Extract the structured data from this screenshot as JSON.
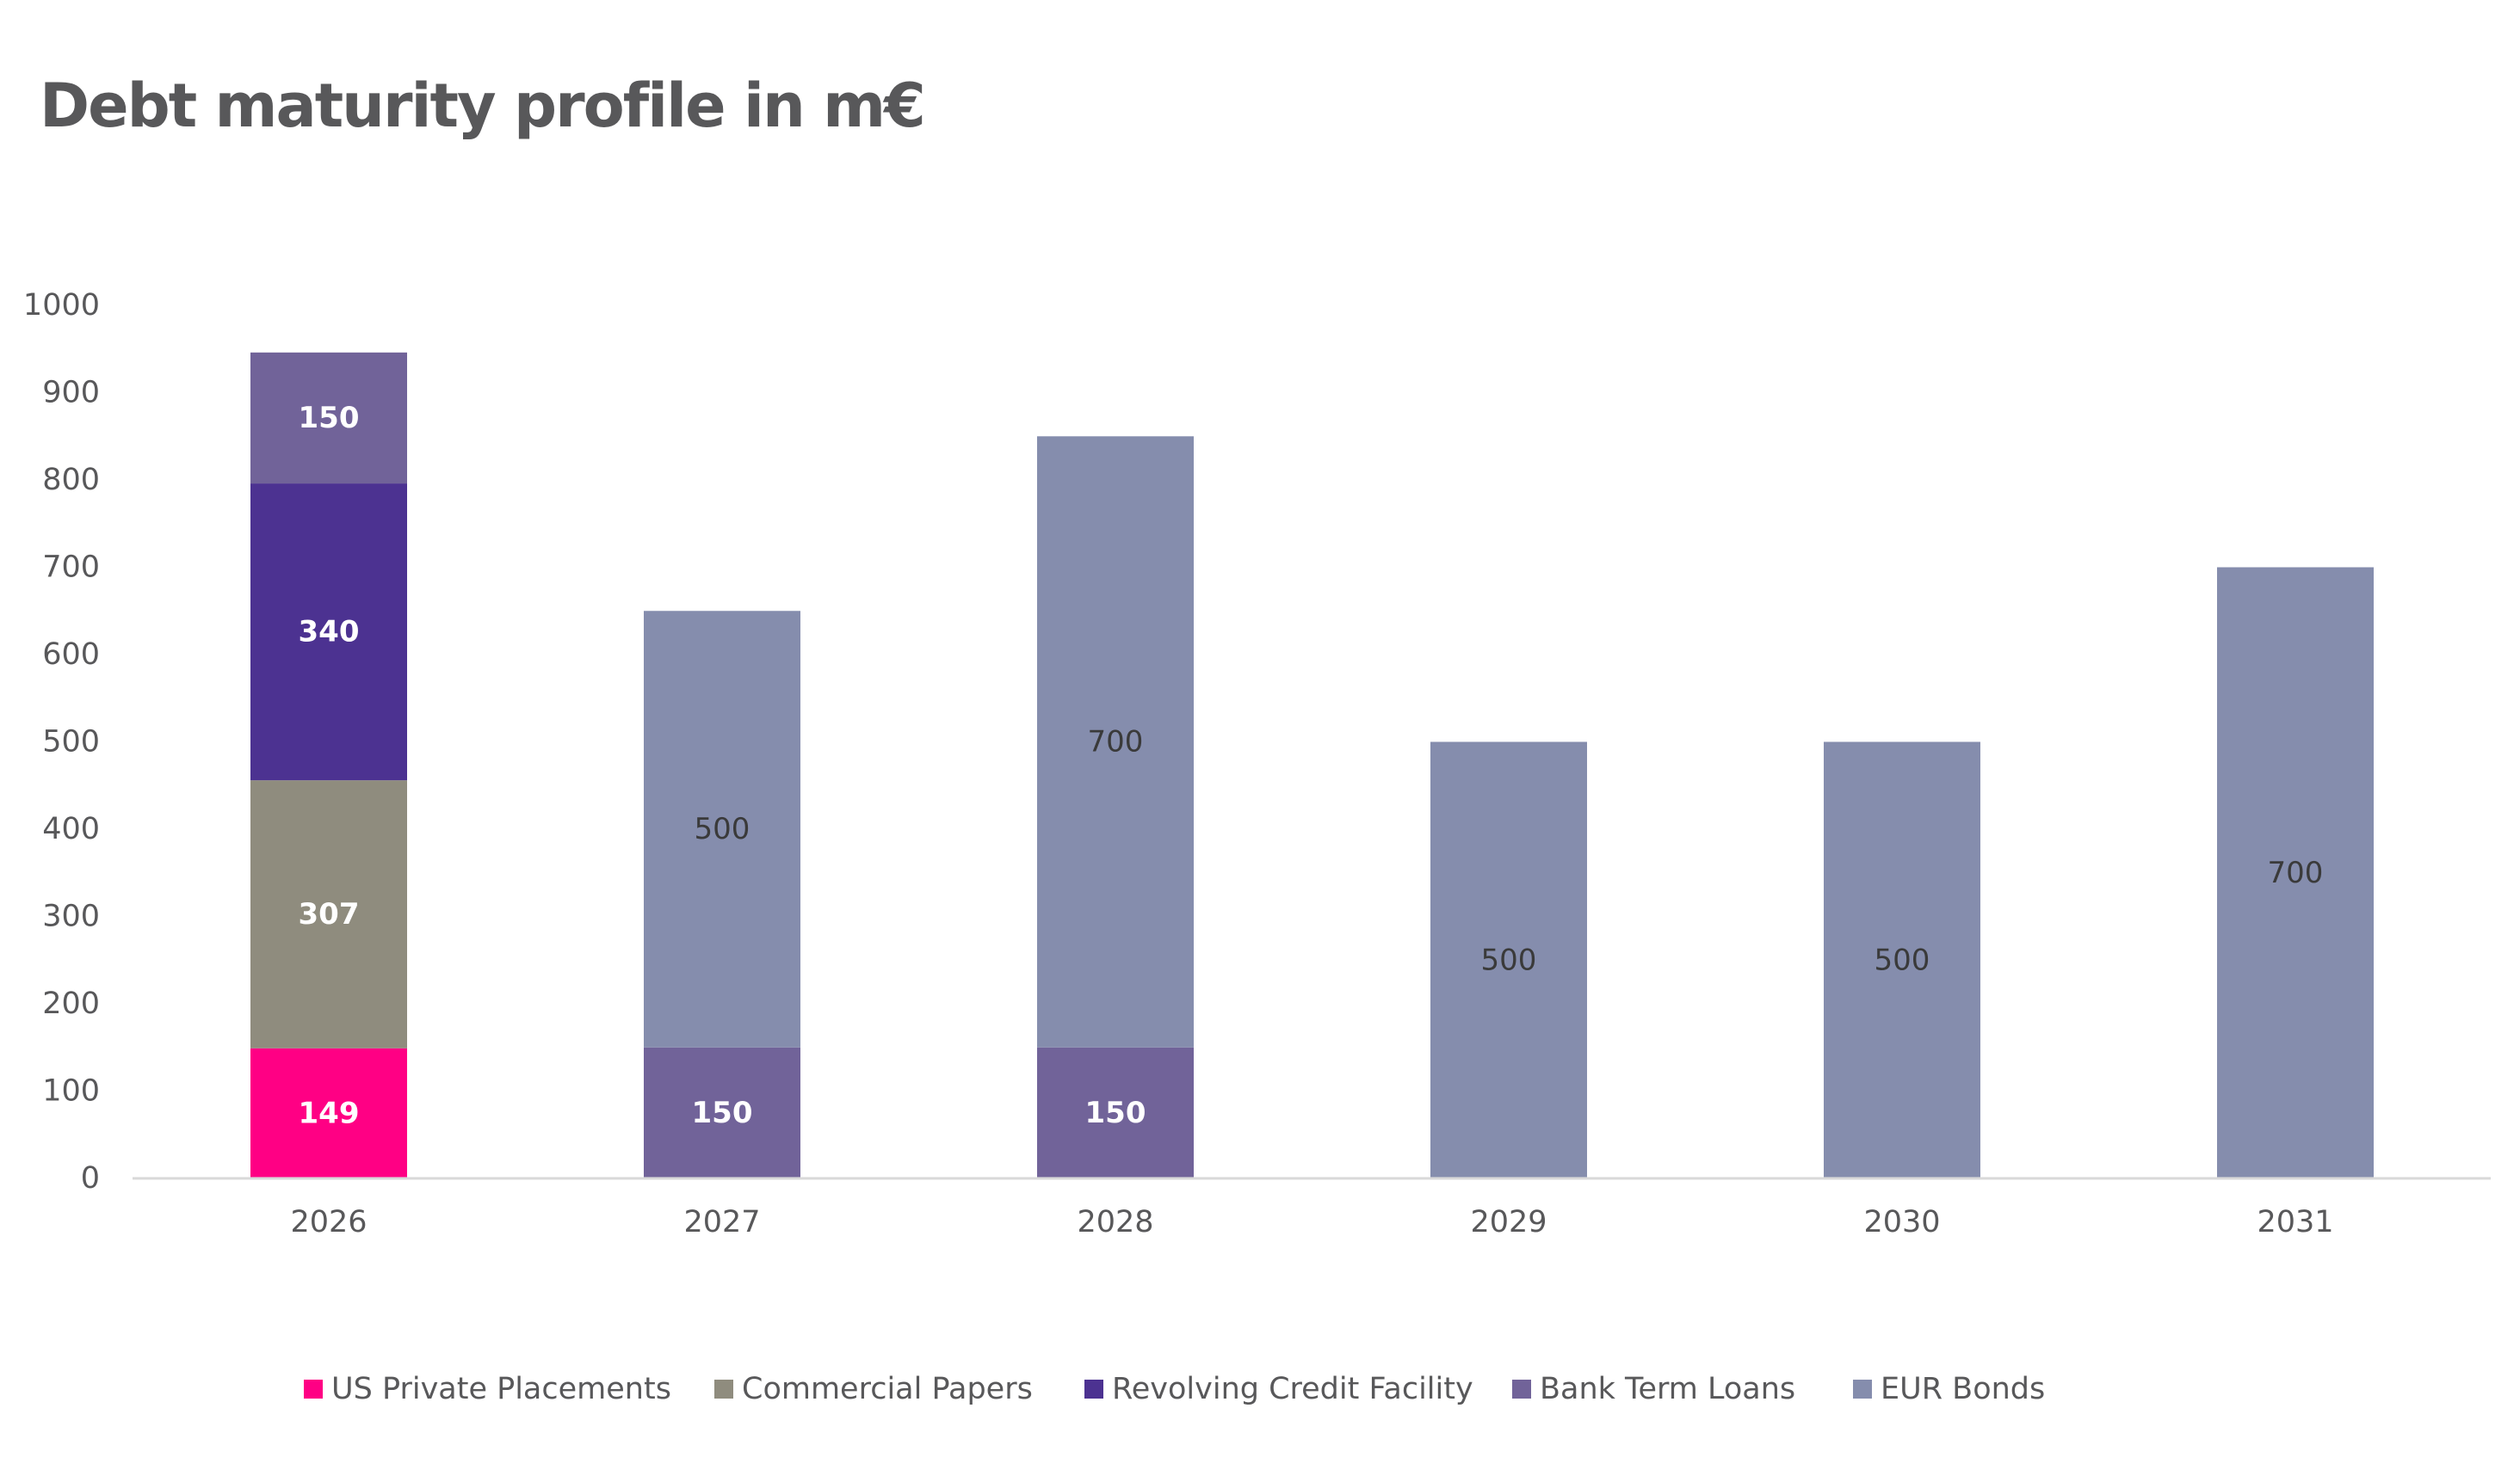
{
  "chart_data": {
    "type": "bar",
    "stacked": true,
    "title": "Debt maturity profile in m€",
    "xlabel": "",
    "ylabel": "",
    "ylim": [
      0,
      1000
    ],
    "yticks": [
      0,
      100,
      200,
      300,
      400,
      500,
      600,
      700,
      800,
      900,
      1000
    ],
    "grid": false,
    "legend_position": "bottom",
    "categories": [
      "2026",
      "2027",
      "2028",
      "2029",
      "2030",
      "2031"
    ],
    "series": [
      {
        "name": "US Private Placements",
        "color": "#ff0084",
        "label_color": "#ffffff",
        "label_bold": true,
        "values": [
          149,
          null,
          null,
          null,
          null,
          null
        ]
      },
      {
        "name": "Commercial Papers",
        "color": "#8f8c7e",
        "label_color": "#ffffff",
        "label_bold": true,
        "values": [
          307,
          null,
          null,
          null,
          null,
          null
        ]
      },
      {
        "name": "Revolving Credit Facility",
        "color": "#4c3291",
        "label_color": "#ffffff",
        "label_bold": true,
        "values": [
          340,
          null,
          null,
          null,
          null,
          null
        ]
      },
      {
        "name": "Bank Term Loans",
        "color": "#716399",
        "label_color": "#ffffff",
        "label_bold": true,
        "values": [
          150,
          150,
          150,
          null,
          null,
          null
        ]
      },
      {
        "name": "EUR Bonds",
        "color": "#858dad",
        "label_color": "#3a3a3a",
        "label_bold": false,
        "values": [
          null,
          500,
          700,
          500,
          500,
          700
        ]
      }
    ]
  }
}
